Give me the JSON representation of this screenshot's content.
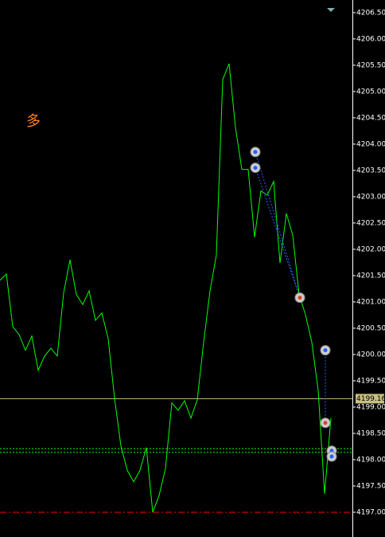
{
  "chart_data": {
    "type": "line",
    "series": [
      {
        "color": "#00ff00",
        "values": [
          4201.41,
          4201.53,
          4200.53,
          4200.38,
          4200.08,
          4200.35,
          4199.7,
          4199.97,
          4200.12,
          4199.97,
          4201.17,
          4201.8,
          4201.14,
          4200.95,
          4201.21,
          4200.65,
          4200.79,
          4200.3,
          4199.17,
          4198.26,
          4197.8,
          4197.58,
          4197.8,
          4198.23,
          4197.0,
          4197.32,
          4197.83,
          4199.08,
          4198.94,
          4199.12,
          4198.79,
          4199.14,
          4200.23,
          4201.21,
          4201.89,
          4205.23,
          4205.53,
          4204.32,
          4203.52,
          4203.52,
          4202.23,
          4203.11,
          4203.03,
          4203.29,
          4201.74,
          4202.68,
          4202.27,
          4201.14,
          4200.76,
          4200.23,
          4199.32,
          4197.35,
          4198.79
        ]
      }
    ],
    "ylim": [
      4196.53,
      4206.74
    ],
    "yticks": [
      {
        "value": 4206.5,
        "label": "4206.50"
      },
      {
        "value": 4206,
        "label": "4206.00"
      },
      {
        "value": 4205.5,
        "label": "4205.50"
      },
      {
        "value": 4205,
        "label": "4205.00"
      },
      {
        "value": 4204.5,
        "label": "4204.50"
      },
      {
        "value": 4204,
        "label": "4204.00"
      },
      {
        "value": 4203.5,
        "label": "4203.50"
      },
      {
        "value": 4203,
        "label": "4203.00"
      },
      {
        "value": 4202.5,
        "label": "4202.50"
      },
      {
        "value": 4202,
        "label": "4202.00"
      },
      {
        "value": 4201.5,
        "label": "4201.50"
      },
      {
        "value": 4201,
        "label": "4201.00"
      },
      {
        "value": 4200.5,
        "label": "4200.50"
      },
      {
        "value": 4200,
        "label": "4200.00"
      },
      {
        "value": 4199.5,
        "label": "4199.50"
      },
      {
        "value": 4199,
        "label": "4199.00"
      },
      {
        "value": 4198.5,
        "label": "4198.50"
      },
      {
        "value": 4198,
        "label": "4198.00"
      },
      {
        "value": 4197.5,
        "label": "4197.50"
      },
      {
        "value": 4197,
        "label": "4197.00"
      }
    ],
    "price_line": {
      "value": 4199.16,
      "label": "4199.16",
      "color": "#c8c080"
    },
    "levels": [
      {
        "value": 4198.21,
        "color": "#00ff00"
      },
      {
        "value": 4198.14,
        "color": "#00ff00"
      },
      {
        "value": 4197.0,
        "color": "#ff0000"
      }
    ],
    "annotation": "多",
    "trades": [
      {
        "open": 4203.85,
        "close": 4201.08
      },
      {
        "open": 4203.55,
        "close": 4201.08
      },
      {
        "open": 4200.08,
        "close": 4198.7
      }
    ],
    "markers": [
      4198.17,
      4198.06
    ]
  }
}
